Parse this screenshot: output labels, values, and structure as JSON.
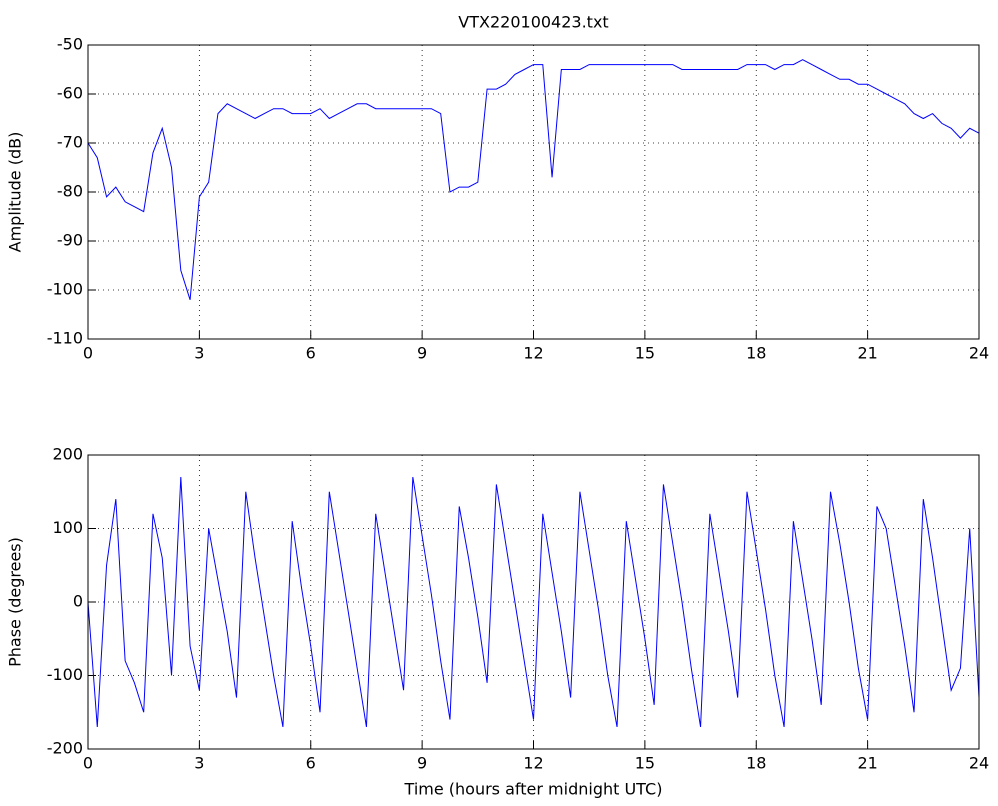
{
  "chart_data": [
    {
      "type": "line",
      "title": "VTX220100423.txt",
      "y_label": "Amplitude (dB)",
      "xlim": [
        0,
        24
      ],
      "xticks": [
        0,
        3,
        6,
        9,
        12,
        15,
        18,
        21,
        24
      ],
      "ylim": [
        -110,
        -50
      ],
      "yticks": [
        -110,
        -100,
        -90,
        -80,
        -70,
        -60,
        -50
      ],
      "grid": true,
      "series": [
        {
          "color": "#0000ff",
          "x": [
            0,
            0.25,
            0.5,
            0.75,
            1,
            1.25,
            1.5,
            1.75,
            2,
            2.25,
            2.5,
            2.75,
            3,
            3.25,
            3.5,
            3.75,
            4,
            4.25,
            4.5,
            4.75,
            5,
            5.25,
            5.5,
            5.75,
            6,
            6.25,
            6.5,
            6.75,
            7,
            7.25,
            7.5,
            7.75,
            8,
            8.25,
            8.5,
            8.75,
            9,
            9.25,
            9.5,
            9.75,
            10,
            10.25,
            10.5,
            10.75,
            11,
            11.25,
            11.5,
            11.75,
            12,
            12.25,
            12.5,
            12.75,
            13,
            13.25,
            13.5,
            13.75,
            14,
            14.25,
            14.5,
            14.75,
            15,
            15.25,
            15.5,
            15.75,
            16,
            16.25,
            16.5,
            16.75,
            17,
            17.25,
            17.5,
            17.75,
            18,
            18.25,
            18.5,
            18.75,
            19,
            19.25,
            19.5,
            19.75,
            20,
            20.25,
            20.5,
            20.75,
            21,
            21.25,
            21.5,
            21.75,
            22,
            22.25,
            22.5,
            22.75,
            23,
            23.25,
            23.5,
            23.75,
            24
          ],
          "values": [
            -70,
            -73,
            -81,
            -79,
            -82,
            -83,
            -84,
            -72,
            -67,
            -75,
            -96,
            -102,
            -81,
            -78,
            -64,
            -62,
            -63,
            -64,
            -65,
            -64,
            -63,
            -63,
            -64,
            -64,
            -64,
            -63,
            -65,
            -64,
            -63,
            -62,
            -62,
            -63,
            -63,
            -63,
            -63,
            -63,
            -63,
            -63,
            -64,
            -80,
            -79,
            -79,
            -78,
            -59,
            -59,
            -58,
            -56,
            -55,
            -54,
            -54,
            -77,
            -55,
            -55,
            -55,
            -54,
            -54,
            -54,
            -54,
            -54,
            -54,
            -54,
            -54,
            -54,
            -54,
            -55,
            -55,
            -55,
            -55,
            -55,
            -55,
            -55,
            -54,
            -54,
            -54,
            -55,
            -54,
            -54,
            -53,
            -54,
            -55,
            -56,
            -57,
            -57,
            -58,
            -58,
            -59,
            -60,
            -61,
            -62,
            -64,
            -65,
            -64,
            -66,
            -67,
            -69,
            -67,
            -68
          ]
        }
      ]
    },
    {
      "type": "line",
      "x_label": "Time (hours after midnight UTC)",
      "y_label": "Phase (degrees)",
      "xlim": [
        0,
        24
      ],
      "xticks": [
        0,
        3,
        6,
        9,
        12,
        15,
        18,
        21,
        24
      ],
      "ylim": [
        -200,
        200
      ],
      "yticks": [
        -200,
        -100,
        0,
        100,
        200
      ],
      "grid": true,
      "series": [
        {
          "color": "#0000ff",
          "x": [
            0,
            0.25,
            0.5,
            0.75,
            1,
            1.25,
            1.5,
            1.75,
            2,
            2.25,
            2.5,
            2.75,
            3,
            3.25,
            3.5,
            3.75,
            4,
            4.25,
            4.5,
            4.75,
            5,
            5.25,
            5.5,
            5.75,
            6,
            6.25,
            6.5,
            6.75,
            7,
            7.25,
            7.5,
            7.75,
            8,
            8.25,
            8.5,
            8.75,
            9,
            9.25,
            9.5,
            9.75,
            10,
            10.25,
            10.5,
            10.75,
            11,
            11.25,
            11.5,
            11.75,
            12,
            12.25,
            12.5,
            12.75,
            13,
            13.25,
            13.5,
            13.75,
            14,
            14.25,
            14.5,
            14.75,
            15,
            15.25,
            15.5,
            15.75,
            16,
            16.25,
            16.5,
            16.75,
            17,
            17.25,
            17.5,
            17.75,
            18,
            18.25,
            18.5,
            18.75,
            19,
            19.25,
            19.5,
            19.75,
            20,
            20.25,
            20.5,
            20.75,
            21,
            21.25,
            21.5,
            21.75,
            22,
            22.25,
            22.5,
            22.75,
            23,
            23.25,
            23.5,
            23.75,
            24
          ],
          "values": [
            0,
            -170,
            50,
            140,
            -80,
            -110,
            -150,
            120,
            60,
            -100,
            170,
            -60,
            -120,
            100,
            30,
            -40,
            -130,
            150,
            60,
            -20,
            -100,
            -170,
            110,
            20,
            -60,
            -150,
            150,
            70,
            -10,
            -90,
            -170,
            120,
            40,
            -40,
            -120,
            170,
            90,
            10,
            -80,
            -160,
            130,
            60,
            -20,
            -110,
            160,
            80,
            0,
            -80,
            -160,
            120,
            40,
            -40,
            -130,
            150,
            70,
            -10,
            -100,
            -170,
            110,
            30,
            -50,
            -140,
            160,
            80,
            0,
            -90,
            -170,
            120,
            40,
            -40,
            -130,
            150,
            70,
            -10,
            -100,
            -170,
            110,
            30,
            -50,
            -140,
            150,
            80,
            0,
            -90,
            -160,
            130,
            100,
            20,
            -60,
            -150,
            140,
            60,
            -30,
            -120,
            -90,
            100,
            -130
          ]
        }
      ]
    }
  ]
}
